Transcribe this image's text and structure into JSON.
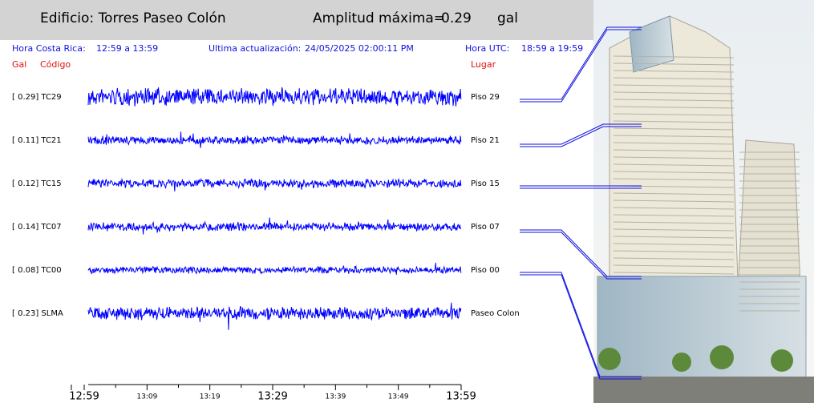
{
  "header": {
    "building": "Edificio: Torres Paseo Colón",
    "amplitude_label": "Amplitud máxima=",
    "amplitude": "0.29",
    "unit": "gal"
  },
  "info": {
    "local_label": "Hora Costa Rica:",
    "local_range": "12:59 a 13:59",
    "update_label": "Ultima actualización:",
    "update": "24/05/2025 02:00:11 PM",
    "utc_label": "Hora UTC:",
    "utc_range": "18:59 a 19:59"
  },
  "columns": {
    "gal": "Gal",
    "code": "Código",
    "place": "Lugar"
  },
  "traces": [
    {
      "label": "[  0.29] TC29",
      "place": "Piso 29"
    },
    {
      "label": "[  0.11] TC21",
      "place": "Piso 21"
    },
    {
      "label": "[  0.12] TC15",
      "place": "Piso 15"
    },
    {
      "label": "[  0.14] TC07",
      "place": "Piso 07"
    },
    {
      "label": "[  0.08] TC00",
      "place": "Piso 00"
    },
    {
      "label": "[  0.23] SLMA",
      "place": "Paseo Colon"
    }
  ],
  "time_axis": [
    "12:59",
    "13:09",
    "13:19",
    "13:29",
    "13:39",
    "13:49",
    "13:59"
  ]
}
